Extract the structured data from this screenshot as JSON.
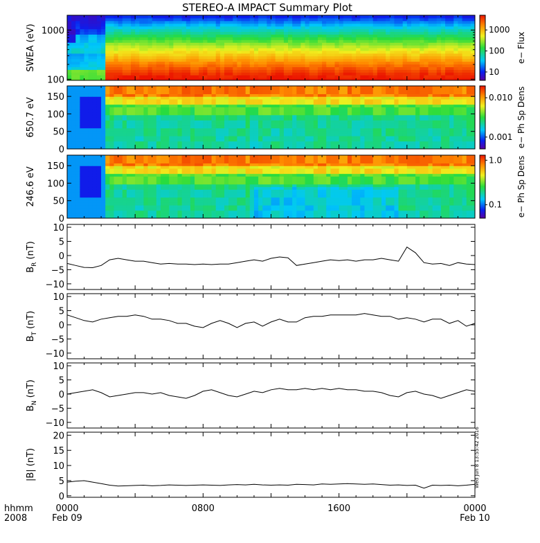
{
  "title": "STEREO-A IMPACT Summary Plot",
  "stamp": "Wed Jun  8 13:55:42 2016",
  "time_axis": {
    "corner_top": "hhmm",
    "corner_bottom": "2008",
    "ticks": [
      {
        "label": "0000",
        "sub": "Feb 09",
        "hour": 0
      },
      {
        "label": "0800",
        "sub": "",
        "hour": 8
      },
      {
        "label": "1600",
        "sub": "",
        "hour": 16
      },
      {
        "label": "0000",
        "sub": "Feb 10",
        "hour": 24
      }
    ],
    "range_hours": [
      0,
      24
    ]
  },
  "chart_data": [
    {
      "type": "heatmap",
      "ylabel": "SWEA (eV)",
      "ylog": true,
      "ylim": [
        95,
        2000
      ],
      "yticks": [
        {
          "v": 100,
          "label": "100"
        },
        {
          "v": 1000,
          "label": "1000"
        }
      ],
      "colorbar": {
        "label": "e− Flux",
        "log": true,
        "range": [
          4,
          5000
        ],
        "ticks": [
          {
            "v": 10,
            "label": "10"
          },
          {
            "v": 100,
            "label": "100"
          },
          {
            "v": 1000,
            "label": "1000"
          }
        ]
      },
      "description_regions": [
        {
          "hours": [
            0,
            2.2
          ],
          "note": "low flux at high energy, higher flux near 100-300 eV"
        },
        {
          "hours": [
            2.2,
            24
          ],
          "note": "flux decreases smoothly with energy: red below ~200 eV, yellow/green mid, blue near 1500 eV"
        }
      ]
    },
    {
      "type": "heatmap",
      "ylabel": "650.7 eV",
      "ylim": [
        0,
        180
      ],
      "yticks": [
        {
          "v": 0,
          "label": "0"
        },
        {
          "v": 50,
          "label": "50"
        },
        {
          "v": 100,
          "label": "100"
        },
        {
          "v": 150,
          "label": "150"
        }
      ],
      "colorbar": {
        "label": "e− Ph Sp Dens",
        "log": true,
        "range": [
          0.0005,
          0.02
        ],
        "ticks": [
          {
            "v": 0.001,
            "label": "0.001"
          },
          {
            "v": 0.01,
            "label": "0.010"
          }
        ]
      }
    },
    {
      "type": "heatmap",
      "ylabel": "246.6 eV",
      "ylim": [
        0,
        180
      ],
      "yticks": [
        {
          "v": 0,
          "label": "0"
        },
        {
          "v": 50,
          "label": "50"
        },
        {
          "v": 100,
          "label": "100"
        },
        {
          "v": 150,
          "label": "150"
        }
      ],
      "colorbar": {
        "label": "e− Ph Sp Dens",
        "log": true,
        "range": [
          0.05,
          1.3
        ],
        "ticks": [
          {
            "v": 0.1,
            "label": "0.1"
          },
          {
            "v": 1.0,
            "label": "1.0"
          }
        ]
      }
    },
    {
      "type": "line",
      "ylabel": "B",
      "ysub": "R",
      "yunit": "(nT)",
      "ylim": [
        -12,
        11
      ],
      "yticks": [
        {
          "v": -10,
          "label": "−10"
        },
        {
          "v": -5,
          "label": "−5"
        },
        {
          "v": 0,
          "label": "0"
        },
        {
          "v": 5,
          "label": "5"
        },
        {
          "v": 10,
          "label": "10"
        }
      ],
      "x": [
        0,
        0.5,
        1,
        1.5,
        2,
        2.5,
        3,
        3.5,
        4,
        4.5,
        5,
        5.5,
        6,
        6.5,
        7,
        7.5,
        8,
        8.5,
        9,
        9.5,
        10,
        10.5,
        11,
        11.5,
        12,
        12.5,
        13,
        13.5,
        14,
        14.5,
        15,
        15.5,
        16,
        16.5,
        17,
        17.5,
        18,
        18.5,
        19,
        19.5,
        20,
        20.5,
        21,
        21.5,
        22,
        22.5,
        23,
        23.5,
        24
      ],
      "y": [
        -2.8,
        -3.5,
        -4.2,
        -4.3,
        -3.5,
        -1.5,
        -1.0,
        -1.5,
        -2.0,
        -2.0,
        -2.5,
        -3.0,
        -2.8,
        -3.0,
        -3.0,
        -3.2,
        -3.0,
        -3.2,
        -3.0,
        -3.0,
        -2.5,
        -2.0,
        -1.5,
        -2.0,
        -1.0,
        -0.5,
        -0.8,
        -3.5,
        -3.0,
        -2.5,
        -2.0,
        -1.5,
        -1.8,
        -1.5,
        -2.0,
        -1.5,
        -1.5,
        -1.0,
        -1.5,
        -2.0,
        3.0,
        1.0,
        -2.5,
        -3.0,
        -2.8,
        -3.5,
        -2.5,
        -3.0,
        -3.2
      ]
    },
    {
      "type": "line",
      "ylabel": "B",
      "ysub": "T",
      "yunit": "(nT)",
      "ylim": [
        -12,
        11
      ],
      "yticks": [
        {
          "v": -10,
          "label": "−10"
        },
        {
          "v": -5,
          "label": "−5"
        },
        {
          "v": 0,
          "label": "0"
        },
        {
          "v": 5,
          "label": "5"
        },
        {
          "v": 10,
          "label": "10"
        }
      ],
      "x": [
        0,
        0.5,
        1,
        1.5,
        2,
        2.5,
        3,
        3.5,
        4,
        4.5,
        5,
        5.5,
        6,
        6.5,
        7,
        7.5,
        8,
        8.5,
        9,
        9.5,
        10,
        10.5,
        11,
        11.5,
        12,
        12.5,
        13,
        13.5,
        14,
        14.5,
        15,
        15.5,
        16,
        16.5,
        17,
        17.5,
        18,
        18.5,
        19,
        19.5,
        20,
        20.5,
        21,
        21.5,
        22,
        22.5,
        23,
        23.5,
        24
      ],
      "y": [
        3.5,
        2.5,
        1.5,
        1.0,
        2.0,
        2.5,
        3.0,
        3.0,
        3.5,
        3.0,
        2.0,
        2.0,
        1.5,
        0.5,
        0.5,
        -0.5,
        -1.0,
        0.5,
        1.5,
        0.5,
        -1.0,
        0.5,
        1.0,
        -0.5,
        1.0,
        2.0,
        1.0,
        1.0,
        2.5,
        3.0,
        3.0,
        3.5,
        3.5,
        3.5,
        3.5,
        4.0,
        3.5,
        3.0,
        3.0,
        2.0,
        2.5,
        2.0,
        1.0,
        2.0,
        2.0,
        0.5,
        1.5,
        -0.5,
        0.5
      ]
    },
    {
      "type": "line",
      "ylabel": "B",
      "ysub": "N",
      "yunit": "(nT)",
      "ylim": [
        -12,
        11
      ],
      "yticks": [
        {
          "v": -10,
          "label": "−10"
        },
        {
          "v": -5,
          "label": "−5"
        },
        {
          "v": 0,
          "label": "0"
        },
        {
          "v": 5,
          "label": "5"
        },
        {
          "v": 10,
          "label": "10"
        }
      ],
      "x": [
        0,
        0.5,
        1,
        1.5,
        2,
        2.5,
        3,
        3.5,
        4,
        4.5,
        5,
        5.5,
        6,
        6.5,
        7,
        7.5,
        8,
        8.5,
        9,
        9.5,
        10,
        10.5,
        11,
        11.5,
        12,
        12.5,
        13,
        13.5,
        14,
        14.5,
        15,
        15.5,
        16,
        16.5,
        17,
        17.5,
        18,
        18.5,
        19,
        19.5,
        20,
        20.5,
        21,
        21.5,
        22,
        22.5,
        23,
        23.5,
        24
      ],
      "y": [
        0.0,
        0.5,
        1.0,
        1.5,
        0.5,
        -1.0,
        -0.5,
        0.0,
        0.5,
        0.5,
        0.0,
        0.5,
        -0.5,
        -1.0,
        -1.5,
        -0.5,
        1.0,
        1.5,
        0.5,
        -0.5,
        -1.0,
        0.0,
        1.0,
        0.5,
        1.5,
        2.0,
        1.5,
        1.5,
        2.0,
        1.5,
        2.0,
        1.5,
        2.0,
        1.5,
        1.5,
        1.0,
        1.0,
        0.5,
        -0.5,
        -1.0,
        0.5,
        1.0,
        0.0,
        -0.5,
        -1.5,
        -0.5,
        0.5,
        1.5,
        1.0
      ]
    },
    {
      "type": "line",
      "ylabel": "|B|",
      "ysub": "",
      "yunit": "(nT)",
      "ylim": [
        -0.5,
        21
      ],
      "yticks": [
        {
          "v": 0,
          "label": "0"
        },
        {
          "v": 5,
          "label": "5"
        },
        {
          "v": 10,
          "label": "10"
        },
        {
          "v": 15,
          "label": "15"
        },
        {
          "v": 20,
          "label": "20"
        }
      ],
      "x": [
        0,
        0.5,
        1,
        1.5,
        2,
        2.5,
        3,
        3.5,
        4,
        4.5,
        5,
        5.5,
        6,
        6.5,
        7,
        7.5,
        8,
        8.5,
        9,
        9.5,
        10,
        10.5,
        11,
        11.5,
        12,
        12.5,
        13,
        13.5,
        14,
        14.5,
        15,
        15.5,
        16,
        16.5,
        17,
        17.5,
        18,
        18.5,
        19,
        19.5,
        20,
        20.5,
        21,
        21.5,
        22,
        22.5,
        23,
        23.5,
        24
      ],
      "y": [
        4.5,
        4.8,
        5.0,
        4.5,
        4.0,
        3.5,
        3.2,
        3.3,
        3.4,
        3.5,
        3.3,
        3.4,
        3.6,
        3.5,
        3.4,
        3.5,
        3.6,
        3.5,
        3.4,
        3.6,
        3.7,
        3.6,
        3.8,
        3.6,
        3.5,
        3.6,
        3.5,
        3.8,
        3.7,
        3.6,
        3.9,
        3.8,
        3.9,
        4.0,
        3.9,
        3.8,
        3.9,
        3.7,
        3.5,
        3.6,
        3.4,
        3.5,
        2.5,
        3.5,
        3.4,
        3.5,
        3.3,
        3.5,
        3.8
      ]
    }
  ]
}
